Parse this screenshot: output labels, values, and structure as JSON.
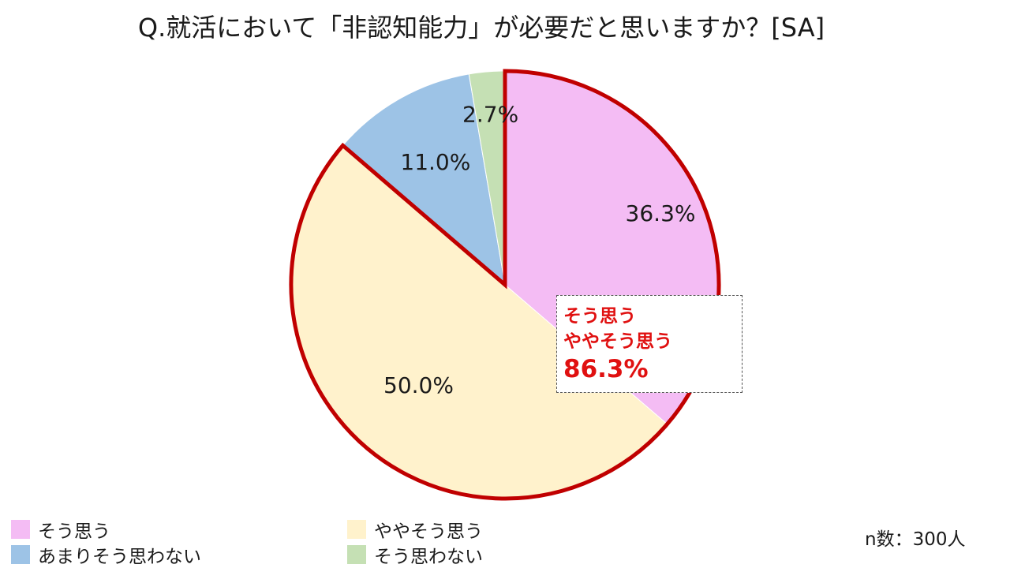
{
  "chart_data": {
    "type": "pie",
    "title": "Q.就活において「非認知能力」が必要だと思いますか？[SA]",
    "categories": [
      "そう思う",
      "ややそう思う",
      "あまりそう思わない",
      "そう思わない"
    ],
    "values": [
      36.3,
      50.0,
      11.0,
      2.7
    ],
    "labels": [
      "36.3%",
      "50.0%",
      "11.0%",
      "2.7%"
    ],
    "colors": [
      "#f4bcf4",
      "#fff2cc",
      "#9dc3e6",
      "#c5e0b4"
    ],
    "highlight_color": "#c00000",
    "highlighted_categories": [
      "そう思う",
      "ややそう思う"
    ],
    "legend_position": "bottom",
    "annotation": {
      "line1": "そう思う",
      "line2": "ややそう思う",
      "line3": "86.3%"
    },
    "sample_size": "n数：300人"
  }
}
